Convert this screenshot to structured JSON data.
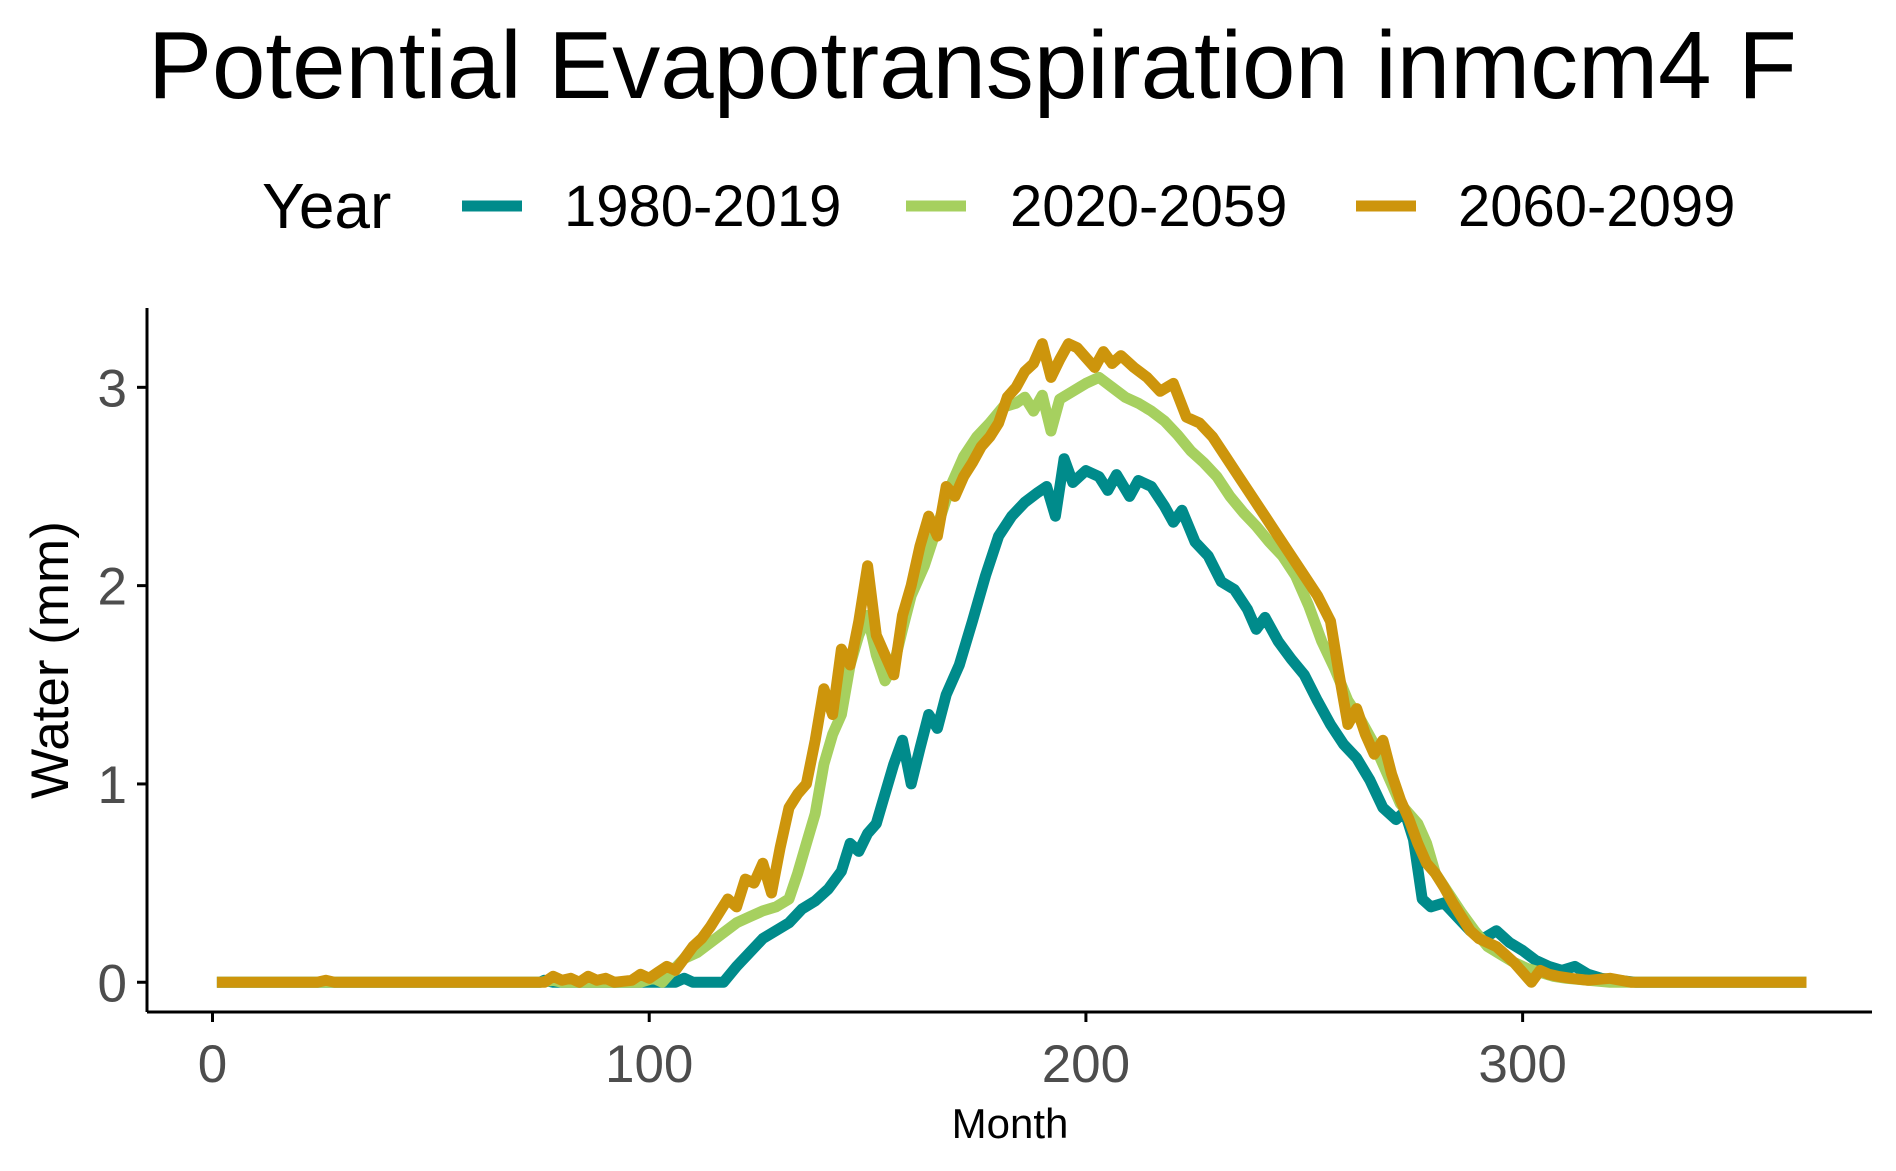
{
  "chart_data": {
    "type": "line",
    "title": "Potential Evapotranspiration inmcm4 F",
    "xlabel": "Month",
    "ylabel": "Water (mm)",
    "xlim": [
      -15,
      380
    ],
    "ylim": [
      -0.15,
      3.4
    ],
    "xticks": [
      0,
      100,
      200,
      300
    ],
    "yticks": [
      0,
      1,
      2,
      3
    ],
    "x_tick_labels": [
      "0",
      "100",
      "200",
      "300"
    ],
    "y_tick_labels": [
      "0",
      "1",
      "2",
      "3"
    ],
    "legend": {
      "title": "Year",
      "position": "top"
    },
    "grid": false,
    "series": [
      {
        "name": "1980-2019",
        "color": "#008b8b",
        "points": [
          [
            1,
            0
          ],
          [
            75,
            0
          ],
          [
            76,
            0.01
          ],
          [
            78,
            0
          ],
          [
            106,
            0
          ],
          [
            108,
            0.02
          ],
          [
            110,
            0
          ],
          [
            117,
            0
          ],
          [
            120,
            0.08
          ],
          [
            123,
            0.15
          ],
          [
            126,
            0.22
          ],
          [
            129,
            0.26
          ],
          [
            132,
            0.3
          ],
          [
            135,
            0.37
          ],
          [
            138,
            0.41
          ],
          [
            141,
            0.47
          ],
          [
            144,
            0.56
          ],
          [
            146,
            0.7
          ],
          [
            148,
            0.66
          ],
          [
            150,
            0.75
          ],
          [
            152,
            0.8
          ],
          [
            154,
            0.95
          ],
          [
            156,
            1.1
          ],
          [
            158,
            1.22
          ],
          [
            160,
            1.0
          ],
          [
            162,
            1.18
          ],
          [
            164,
            1.35
          ],
          [
            166,
            1.28
          ],
          [
            168,
            1.45
          ],
          [
            171,
            1.6
          ],
          [
            174,
            1.82
          ],
          [
            177,
            2.05
          ],
          [
            180,
            2.25
          ],
          [
            183,
            2.35
          ],
          [
            186,
            2.42
          ],
          [
            189,
            2.47
          ],
          [
            191,
            2.5
          ],
          [
            193,
            2.35
          ],
          [
            195,
            2.64
          ],
          [
            197,
            2.52
          ],
          [
            200,
            2.58
          ],
          [
            203,
            2.55
          ],
          [
            205,
            2.48
          ],
          [
            207,
            2.56
          ],
          [
            210,
            2.45
          ],
          [
            212,
            2.53
          ],
          [
            215,
            2.5
          ],
          [
            218,
            2.4
          ],
          [
            220,
            2.32
          ],
          [
            222,
            2.38
          ],
          [
            225,
            2.22
          ],
          [
            228,
            2.15
          ],
          [
            231,
            2.02
          ],
          [
            234,
            1.98
          ],
          [
            237,
            1.88
          ],
          [
            239,
            1.78
          ],
          [
            241,
            1.84
          ],
          [
            244,
            1.72
          ],
          [
            247,
            1.63
          ],
          [
            250,
            1.55
          ],
          [
            253,
            1.42
          ],
          [
            256,
            1.3
          ],
          [
            259,
            1.2
          ],
          [
            262,
            1.13
          ],
          [
            265,
            1.02
          ],
          [
            268,
            0.88
          ],
          [
            271,
            0.82
          ],
          [
            273,
            0.86
          ],
          [
            275,
            0.72
          ],
          [
            277,
            0.42
          ],
          [
            279,
            0.38
          ],
          [
            282,
            0.4
          ],
          [
            285,
            0.33
          ],
          [
            288,
            0.26
          ],
          [
            291,
            0.22
          ],
          [
            294,
            0.26
          ],
          [
            297,
            0.2
          ],
          [
            300,
            0.16
          ],
          [
            303,
            0.11
          ],
          [
            306,
            0.08
          ],
          [
            309,
            0.06
          ],
          [
            312,
            0.08
          ],
          [
            315,
            0.04
          ],
          [
            318,
            0.02
          ],
          [
            322,
            0.01
          ],
          [
            326,
            0
          ],
          [
            365,
            0
          ]
        ]
      },
      {
        "name": "2020-2059",
        "color": "#a6d05f",
        "points": [
          [
            1,
            0
          ],
          [
            75,
            0
          ],
          [
            78,
            0.01
          ],
          [
            80,
            0
          ],
          [
            98,
            0
          ],
          [
            101,
            0.02
          ],
          [
            103,
            0
          ],
          [
            105,
            0.05
          ],
          [
            108,
            0.12
          ],
          [
            111,
            0.15
          ],
          [
            114,
            0.2
          ],
          [
            117,
            0.25
          ],
          [
            120,
            0.3
          ],
          [
            123,
            0.33
          ],
          [
            126,
            0.36
          ],
          [
            129,
            0.38
          ],
          [
            132,
            0.42
          ],
          [
            134,
            0.55
          ],
          [
            136,
            0.7
          ],
          [
            138,
            0.85
          ],
          [
            140,
            1.1
          ],
          [
            142,
            1.25
          ],
          [
            144,
            1.35
          ],
          [
            146,
            1.6
          ],
          [
            148,
            1.75
          ],
          [
            150,
            1.85
          ],
          [
            152,
            1.65
          ],
          [
            154,
            1.52
          ],
          [
            156,
            1.6
          ],
          [
            158,
            1.78
          ],
          [
            160,
            1.95
          ],
          [
            163,
            2.1
          ],
          [
            166,
            2.3
          ],
          [
            169,
            2.5
          ],
          [
            172,
            2.65
          ],
          [
            175,
            2.75
          ],
          [
            178,
            2.82
          ],
          [
            181,
            2.9
          ],
          [
            184,
            2.92
          ],
          [
            186,
            2.95
          ],
          [
            188,
            2.88
          ],
          [
            190,
            2.96
          ],
          [
            192,
            2.78
          ],
          [
            194,
            2.94
          ],
          [
            197,
            2.98
          ],
          [
            200,
            3.02
          ],
          [
            203,
            3.05
          ],
          [
            206,
            3.0
          ],
          [
            209,
            2.95
          ],
          [
            212,
            2.92
          ],
          [
            215,
            2.88
          ],
          [
            218,
            2.83
          ],
          [
            221,
            2.76
          ],
          [
            224,
            2.68
          ],
          [
            227,
            2.62
          ],
          [
            230,
            2.55
          ],
          [
            233,
            2.45
          ],
          [
            236,
            2.37
          ],
          [
            239,
            2.3
          ],
          [
            242,
            2.22
          ],
          [
            245,
            2.15
          ],
          [
            248,
            2.05
          ],
          [
            251,
            1.9
          ],
          [
            254,
            1.72
          ],
          [
            257,
            1.58
          ],
          [
            260,
            1.42
          ],
          [
            263,
            1.32
          ],
          [
            266,
            1.2
          ],
          [
            269,
            1.05
          ],
          [
            272,
            0.9
          ],
          [
            274,
            0.85
          ],
          [
            276,
            0.8
          ],
          [
            278,
            0.7
          ],
          [
            280,
            0.55
          ],
          [
            283,
            0.45
          ],
          [
            286,
            0.35
          ],
          [
            289,
            0.26
          ],
          [
            292,
            0.18
          ],
          [
            295,
            0.14
          ],
          [
            298,
            0.1
          ],
          [
            301,
            0.07
          ],
          [
            304,
            0.05
          ],
          [
            307,
            0.03
          ],
          [
            310,
            0.02
          ],
          [
            315,
            0.01
          ],
          [
            320,
            0
          ],
          [
            365,
            0
          ]
        ]
      },
      {
        "name": "2060-2099",
        "color": "#cd950c",
        "points": [
          [
            1,
            0
          ],
          [
            24,
            0
          ],
          [
            26,
            0.01
          ],
          [
            28,
            0
          ],
          [
            76,
            0
          ],
          [
            78,
            0.03
          ],
          [
            80,
            0.01
          ],
          [
            82,
            0.02
          ],
          [
            84,
            0
          ],
          [
            86,
            0.03
          ],
          [
            88,
            0.01
          ],
          [
            90,
            0.02
          ],
          [
            92,
            0
          ],
          [
            96,
            0.01
          ],
          [
            98,
            0.04
          ],
          [
            100,
            0.02
          ],
          [
            102,
            0.05
          ],
          [
            104,
            0.08
          ],
          [
            106,
            0.06
          ],
          [
            108,
            0.12
          ],
          [
            110,
            0.18
          ],
          [
            112,
            0.22
          ],
          [
            114,
            0.28
          ],
          [
            116,
            0.35
          ],
          [
            118,
            0.42
          ],
          [
            120,
            0.38
          ],
          [
            122,
            0.52
          ],
          [
            124,
            0.5
          ],
          [
            126,
            0.6
          ],
          [
            128,
            0.45
          ],
          [
            130,
            0.68
          ],
          [
            132,
            0.88
          ],
          [
            134,
            0.95
          ],
          [
            136,
            1.0
          ],
          [
            138,
            1.22
          ],
          [
            140,
            1.48
          ],
          [
            142,
            1.35
          ],
          [
            144,
            1.68
          ],
          [
            146,
            1.6
          ],
          [
            148,
            1.82
          ],
          [
            150,
            2.1
          ],
          [
            152,
            1.75
          ],
          [
            154,
            1.65
          ],
          [
            156,
            1.55
          ],
          [
            158,
            1.85
          ],
          [
            160,
            2.0
          ],
          [
            162,
            2.2
          ],
          [
            164,
            2.35
          ],
          [
            166,
            2.25
          ],
          [
            168,
            2.5
          ],
          [
            170,
            2.45
          ],
          [
            172,
            2.55
          ],
          [
            174,
            2.62
          ],
          [
            176,
            2.7
          ],
          [
            178,
            2.75
          ],
          [
            180,
            2.82
          ],
          [
            182,
            2.95
          ],
          [
            184,
            3.0
          ],
          [
            186,
            3.08
          ],
          [
            188,
            3.12
          ],
          [
            190,
            3.22
          ],
          [
            192,
            3.05
          ],
          [
            194,
            3.14
          ],
          [
            196,
            3.22
          ],
          [
            198,
            3.2
          ],
          [
            200,
            3.15
          ],
          [
            202,
            3.1
          ],
          [
            204,
            3.18
          ],
          [
            206,
            3.12
          ],
          [
            208,
            3.16
          ],
          [
            211,
            3.1
          ],
          [
            214,
            3.05
          ],
          [
            217,
            2.98
          ],
          [
            220,
            3.02
          ],
          [
            223,
            2.85
          ],
          [
            226,
            2.82
          ],
          [
            229,
            2.75
          ],
          [
            232,
            2.65
          ],
          [
            235,
            2.55
          ],
          [
            238,
            2.45
          ],
          [
            241,
            2.35
          ],
          [
            244,
            2.25
          ],
          [
            247,
            2.15
          ],
          [
            250,
            2.05
          ],
          [
            253,
            1.95
          ],
          [
            256,
            1.82
          ],
          [
            258,
            1.55
          ],
          [
            260,
            1.3
          ],
          [
            262,
            1.38
          ],
          [
            264,
            1.25
          ],
          [
            266,
            1.15
          ],
          [
            268,
            1.22
          ],
          [
            270,
            1.05
          ],
          [
            272,
            0.92
          ],
          [
            274,
            0.82
          ],
          [
            276,
            0.7
          ],
          [
            278,
            0.6
          ],
          [
            280,
            0.55
          ],
          [
            282,
            0.48
          ],
          [
            284,
            0.4
          ],
          [
            286,
            0.33
          ],
          [
            288,
            0.26
          ],
          [
            290,
            0.22
          ],
          [
            292,
            0.2
          ],
          [
            294,
            0.18
          ],
          [
            296,
            0.14
          ],
          [
            298,
            0.1
          ],
          [
            300,
            0.05
          ],
          [
            302,
            0.0
          ],
          [
            304,
            0.06
          ],
          [
            306,
            0.04
          ],
          [
            308,
            0.03
          ],
          [
            311,
            0.02
          ],
          [
            315,
            0.01
          ],
          [
            320,
            0.02
          ],
          [
            325,
            0
          ],
          [
            365,
            0
          ]
        ]
      }
    ]
  }
}
